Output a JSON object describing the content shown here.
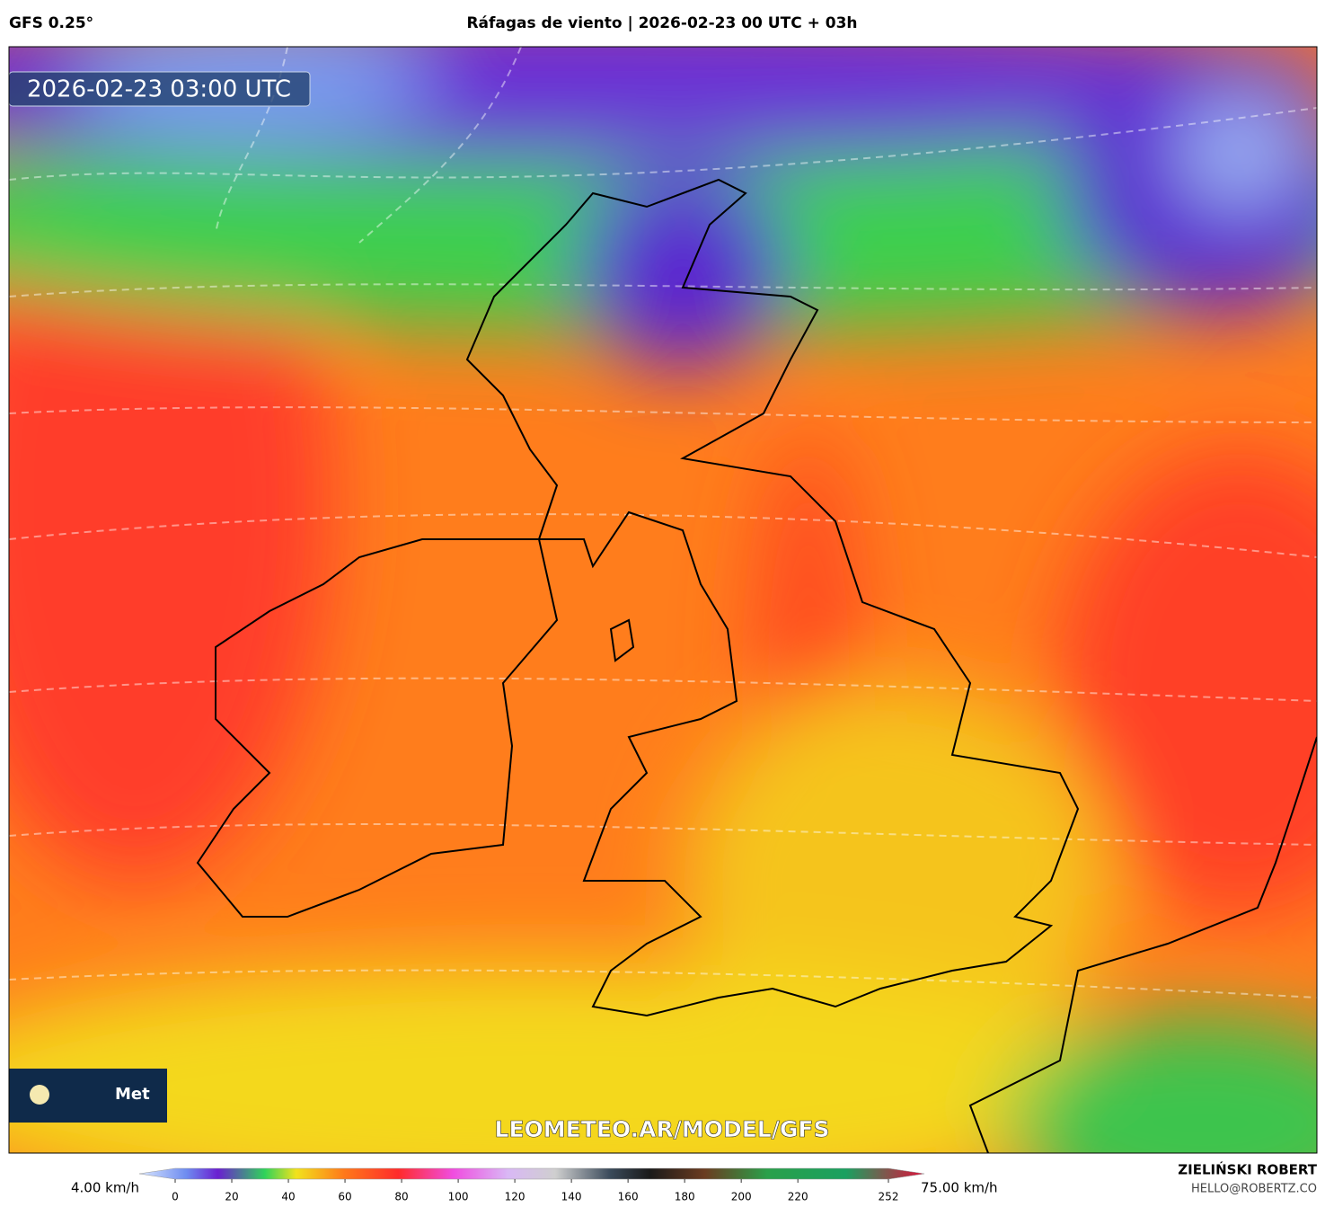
{
  "header": {
    "model": "GFS 0.25°",
    "title": "Ráfagas de viento | 2026-02-23 00 UTC + 03h"
  },
  "map": {
    "timestamp": "2026-02-23 03:00 UTC",
    "watermark": "LEOMETEO.AR/MODEL/GFS",
    "logo": "Met"
  },
  "colorbar": {
    "min_label": "4.00 km/h",
    "max_label": "75.00 km/h",
    "lim": [
      0,
      252
    ],
    "ticks": [
      0,
      20,
      40,
      60,
      80,
      100,
      120,
      140,
      160,
      180,
      200,
      220,
      252
    ]
  },
  "credit": {
    "name": "ZIELIŃSKI ROBERT",
    "email": "HELLO@ROBERTZ.CO"
  }
}
